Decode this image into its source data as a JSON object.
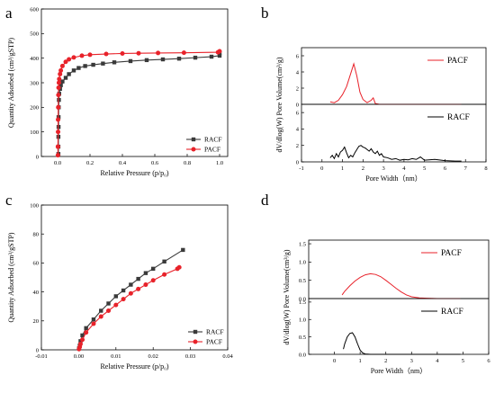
{
  "figure": {
    "panels": [
      "a",
      "b",
      "c",
      "d"
    ]
  },
  "chart_data": [
    {
      "panel": "a",
      "type": "line",
      "xlabel": "Relative Pressure (p/p₀)",
      "ylabel": "Quantity Adsorbed (cm³/gSTP)",
      "xlim": [
        -0.1,
        1.05
      ],
      "ylim": [
        0,
        600
      ],
      "xticks": [
        "0.0",
        "0.2",
        "0.4",
        "0.6",
        "0.8",
        "1.0"
      ],
      "yticks": [
        "0",
        "100",
        "200",
        "300",
        "400",
        "500",
        "600"
      ],
      "legend": "bottom-right",
      "series": [
        {
          "name": "RACF",
          "color": "#3a3a3a",
          "marker": "square",
          "x": [
            0.005,
            0.005,
            0.005,
            0.006,
            0.006,
            0.007,
            0.008,
            0.01,
            0.015,
            0.02,
            0.03,
            0.05,
            0.07,
            0.1,
            0.13,
            0.17,
            0.22,
            0.28,
            0.35,
            0.45,
            0.55,
            0.65,
            0.75,
            0.85,
            0.95,
            1.0,
            1.0
          ],
          "y": [
            10,
            40,
            80,
            120,
            160,
            200,
            230,
            255,
            275,
            290,
            305,
            320,
            335,
            350,
            360,
            368,
            373,
            378,
            383,
            388,
            392,
            395,
            398,
            402,
            406,
            410,
            420
          ]
        },
        {
          "name": "PACF",
          "color": "#e8222a",
          "marker": "circle",
          "x": [
            0.002,
            0.002,
            0.003,
            0.003,
            0.004,
            0.005,
            0.006,
            0.008,
            0.01,
            0.015,
            0.02,
            0.03,
            0.05,
            0.07,
            0.1,
            0.15,
            0.2,
            0.3,
            0.4,
            0.5,
            0.62,
            0.78,
            0.99,
            1.0
          ],
          "y": [
            5,
            40,
            100,
            150,
            200,
            250,
            280,
            300,
            315,
            335,
            350,
            368,
            385,
            395,
            403,
            410,
            414,
            417,
            419,
            420,
            421,
            422,
            424,
            428
          ]
        }
      ]
    },
    {
      "panel": "b",
      "type": "line",
      "xlabel": "Pore Width（nm）",
      "ylabel": "dV/dlog(W) Pore Volume(cm³/g)",
      "xlim": [
        -1,
        8
      ],
      "xticks": [
        "-1",
        "0",
        "1",
        "2",
        "3",
        "4",
        "5",
        "6",
        "7",
        "8"
      ],
      "top": {
        "name": "PACF",
        "color": "#e8222a",
        "ylim": [
          0,
          7
        ],
        "yticks": [
          "0",
          "2",
          "4",
          "6"
        ],
        "x": [
          0.4,
          0.6,
          0.8,
          1.0,
          1.2,
          1.4,
          1.55,
          1.7,
          1.85,
          2.0,
          2.2,
          2.4,
          2.5,
          2.6,
          2.8,
          3.2,
          4.0,
          5.0,
          6.0,
          6.8
        ],
        "y": [
          0.3,
          0.2,
          0.5,
          1.2,
          2.2,
          3.8,
          5.0,
          3.5,
          1.5,
          0.6,
          0.2,
          0.5,
          0.8,
          0.1,
          0.0,
          0.0,
          0.0,
          0.0,
          0.0,
          0.0
        ]
      },
      "bottom": {
        "name": "RACF",
        "color": "#000000",
        "ylim": [
          0,
          7
        ],
        "yticks": [
          "0",
          "2",
          "4",
          "6"
        ],
        "x": [
          0.4,
          0.5,
          0.6,
          0.7,
          0.8,
          0.9,
          1.0,
          1.1,
          1.2,
          1.3,
          1.4,
          1.5,
          1.6,
          1.7,
          1.8,
          1.9,
          2.0,
          2.1,
          2.2,
          2.3,
          2.4,
          2.5,
          2.6,
          2.7,
          2.8,
          2.9,
          3.0,
          3.2,
          3.4,
          3.6,
          3.8,
          4.0,
          4.2,
          4.4,
          4.6,
          4.8,
          5.0,
          5.5,
          6.0,
          6.5,
          6.8
        ],
        "y": [
          0.5,
          0.8,
          0.4,
          1.0,
          0.6,
          1.2,
          1.4,
          1.8,
          1.1,
          0.5,
          0.8,
          0.6,
          1.1,
          1.5,
          1.9,
          2.0,
          1.8,
          1.7,
          1.5,
          1.3,
          1.6,
          1.2,
          1.0,
          1.3,
          0.8,
          1.0,
          0.6,
          0.5,
          0.3,
          0.4,
          0.2,
          0.3,
          0.25,
          0.4,
          0.3,
          0.6,
          0.2,
          0.3,
          0.15,
          0.1,
          0.1
        ]
      }
    },
    {
      "panel": "c",
      "type": "line",
      "xlabel": "Relative Pressure (p/p₀)",
      "ylabel": "Quantity Adsorbed (cm³/gSTP)",
      "xlim": [
        -0.01,
        0.04
      ],
      "ylim": [
        0,
        100
      ],
      "xticks": [
        "-0.01",
        "0.00",
        "0.01",
        "0.02",
        "0.03",
        "0.04"
      ],
      "yticks": [
        "0",
        "20",
        "40",
        "60",
        "80",
        "100"
      ],
      "legend": "bottom-right",
      "series": [
        {
          "name": "RACF",
          "color": "#3a3a3a",
          "marker": "square",
          "x": [
            0.0001,
            0.0003,
            0.0005,
            0.001,
            0.002,
            0.004,
            0.006,
            0.008,
            0.01,
            0.012,
            0.014,
            0.016,
            0.018,
            0.02,
            0.023,
            0.028
          ],
          "y": [
            1,
            3,
            6,
            10,
            15,
            21,
            27,
            32,
            37,
            41,
            45,
            49,
            53,
            56,
            61,
            69
          ]
        },
        {
          "name": "PACF",
          "color": "#e8222a",
          "marker": "circle",
          "x": [
            0.0001,
            0.0003,
            0.0005,
            0.001,
            0.002,
            0.004,
            0.006,
            0.008,
            0.01,
            0.012,
            0.014,
            0.016,
            0.018,
            0.02,
            0.023,
            0.0265,
            0.027
          ],
          "y": [
            0.5,
            2,
            4,
            7,
            12,
            18,
            23,
            27,
            31,
            35,
            39,
            42,
            45,
            48,
            52,
            56,
            57
          ]
        }
      ]
    },
    {
      "panel": "d",
      "type": "line",
      "xlabel": "Pore Width（nm）",
      "ylabel": "dV/dlog(W) Pore Volume(cm³/g)",
      "xlim": [
        -1,
        6
      ],
      "xticks": [
        "0",
        "1",
        "2",
        "3",
        "4",
        "5",
        "6"
      ],
      "top": {
        "name": "PACF",
        "color": "#e8222a",
        "ylim": [
          0,
          1.6
        ],
        "yticks": [
          "0.0",
          "0.5",
          "1.0",
          "1.5"
        ],
        "x": [
          0.3,
          0.4,
          0.6,
          0.8,
          1.0,
          1.2,
          1.4,
          1.6,
          1.8,
          2.0,
          2.2,
          2.4,
          2.6,
          2.8,
          3.0,
          3.3,
          3.6,
          4.0,
          4.5,
          4.9
        ],
        "y": [
          0.1,
          0.2,
          0.35,
          0.48,
          0.58,
          0.65,
          0.68,
          0.66,
          0.6,
          0.5,
          0.39,
          0.28,
          0.18,
          0.1,
          0.05,
          0.02,
          0.01,
          0.0,
          0.0,
          0.0
        ]
      },
      "bottom": {
        "name": "RACF",
        "color": "#000000",
        "ylim": [
          0,
          1.6
        ],
        "yticks": [
          "0.0",
          "0.5",
          "1.0",
          "1.5"
        ],
        "x": [
          0.35,
          0.4,
          0.5,
          0.6,
          0.7,
          0.8,
          0.9,
          1.0,
          1.1,
          1.2,
          1.4,
          1.6,
          2.0,
          3.0,
          4.0,
          4.9
        ],
        "y": [
          0.15,
          0.3,
          0.5,
          0.6,
          0.62,
          0.5,
          0.3,
          0.12,
          0.04,
          0.01,
          0.0,
          0.0,
          0.0,
          0.0,
          0.0,
          0.0
        ]
      }
    }
  ]
}
